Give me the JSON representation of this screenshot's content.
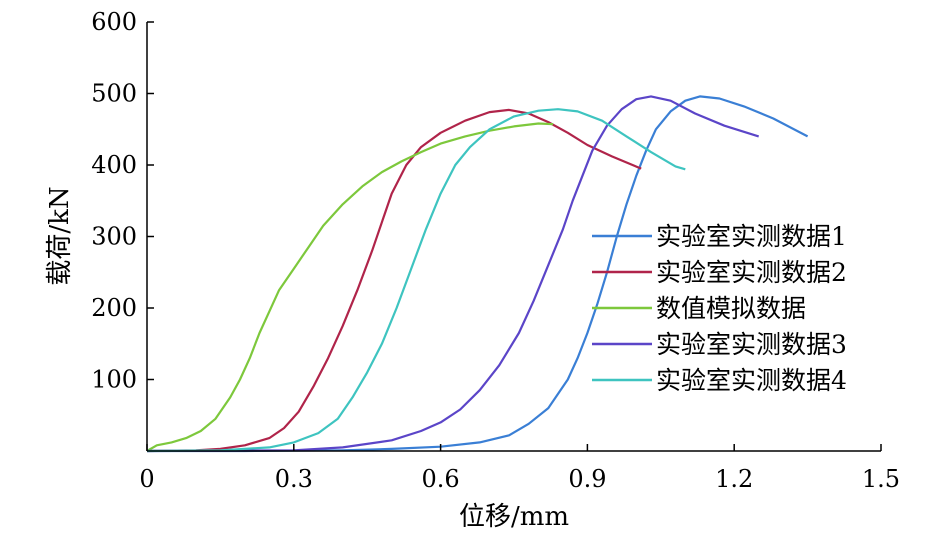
{
  "chart_data": {
    "type": "line",
    "xlabel": "位移/mm",
    "ylabel": "载荷/kN",
    "xlim": [
      0,
      1.5
    ],
    "ylim": [
      0,
      600
    ],
    "x_ticks": [
      0,
      0.3,
      0.6,
      0.9,
      1.2,
      1.5
    ],
    "x_tick_labels": [
      "0",
      "0.3",
      "0.6",
      "0.9",
      "1.2",
      "1.5"
    ],
    "y_ticks": [
      100,
      200,
      300,
      400,
      500,
      600
    ],
    "y_tick_labels": [
      "100",
      "200",
      "300",
      "400",
      "500",
      "600"
    ],
    "grid": false,
    "legend_position": "right",
    "series": [
      {
        "name": "实验室实测数据1",
        "color": "#3a7fd5",
        "points": [
          [
            0,
            0
          ],
          [
            0.2,
            0
          ],
          [
            0.4,
            1
          ],
          [
            0.5,
            3
          ],
          [
            0.6,
            6
          ],
          [
            0.68,
            12
          ],
          [
            0.74,
            22
          ],
          [
            0.78,
            38
          ],
          [
            0.82,
            60
          ],
          [
            0.86,
            100
          ],
          [
            0.88,
            130
          ],
          [
            0.9,
            165
          ],
          [
            0.92,
            205
          ],
          [
            0.94,
            250
          ],
          [
            0.96,
            300
          ],
          [
            0.98,
            345
          ],
          [
            1.0,
            385
          ],
          [
            1.02,
            420
          ],
          [
            1.04,
            450
          ],
          [
            1.07,
            475
          ],
          [
            1.1,
            490
          ],
          [
            1.13,
            496
          ],
          [
            1.17,
            493
          ],
          [
            1.22,
            482
          ],
          [
            1.28,
            465
          ],
          [
            1.35,
            440
          ]
        ]
      },
      {
        "name": "实验室实测数据2",
        "color": "#b0244a",
        "points": [
          [
            0,
            0
          ],
          [
            0.1,
            1
          ],
          [
            0.15,
            3
          ],
          [
            0.2,
            8
          ],
          [
            0.25,
            18
          ],
          [
            0.28,
            32
          ],
          [
            0.31,
            55
          ],
          [
            0.34,
            90
          ],
          [
            0.37,
            130
          ],
          [
            0.4,
            175
          ],
          [
            0.43,
            225
          ],
          [
            0.46,
            280
          ],
          [
            0.48,
            320
          ],
          [
            0.5,
            360
          ],
          [
            0.53,
            400
          ],
          [
            0.56,
            425
          ],
          [
            0.6,
            445
          ],
          [
            0.65,
            462
          ],
          [
            0.7,
            474
          ],
          [
            0.74,
            477
          ],
          [
            0.78,
            472
          ],
          [
            0.82,
            460
          ],
          [
            0.86,
            445
          ],
          [
            0.9,
            428
          ],
          [
            0.95,
            412
          ],
          [
            1.01,
            395
          ]
        ]
      },
      {
        "name": "数值模拟数据",
        "color": "#7dc83c",
        "points": [
          [
            0,
            0
          ],
          [
            0.02,
            8
          ],
          [
            0.05,
            12
          ],
          [
            0.08,
            18
          ],
          [
            0.11,
            28
          ],
          [
            0.14,
            45
          ],
          [
            0.17,
            75
          ],
          [
            0.19,
            100
          ],
          [
            0.21,
            130
          ],
          [
            0.23,
            165
          ],
          [
            0.25,
            195
          ],
          [
            0.27,
            225
          ],
          [
            0.3,
            255
          ],
          [
            0.33,
            285
          ],
          [
            0.36,
            315
          ],
          [
            0.4,
            345
          ],
          [
            0.44,
            370
          ],
          [
            0.48,
            390
          ],
          [
            0.52,
            405
          ],
          [
            0.56,
            418
          ],
          [
            0.6,
            430
          ],
          [
            0.65,
            440
          ],
          [
            0.7,
            448
          ],
          [
            0.75,
            454
          ],
          [
            0.8,
            458
          ],
          [
            0.83,
            457
          ]
        ]
      },
      {
        "name": "实验室实测数据3",
        "color": "#5b45c8",
        "points": [
          [
            0,
            0
          ],
          [
            0.3,
            1
          ],
          [
            0.4,
            5
          ],
          [
            0.5,
            15
          ],
          [
            0.56,
            28
          ],
          [
            0.6,
            40
          ],
          [
            0.64,
            58
          ],
          [
            0.68,
            85
          ],
          [
            0.72,
            120
          ],
          [
            0.76,
            165
          ],
          [
            0.79,
            210
          ],
          [
            0.82,
            260
          ],
          [
            0.85,
            310
          ],
          [
            0.87,
            350
          ],
          [
            0.89,
            385
          ],
          [
            0.91,
            420
          ],
          [
            0.94,
            455
          ],
          [
            0.97,
            478
          ],
          [
            1.0,
            492
          ],
          [
            1.03,
            496
          ],
          [
            1.07,
            490
          ],
          [
            1.12,
            472
          ],
          [
            1.18,
            455
          ],
          [
            1.25,
            440
          ]
        ]
      },
      {
        "name": "实验室实测数据4",
        "color": "#3ec4c0",
        "points": [
          [
            0,
            0
          ],
          [
            0.15,
            1
          ],
          [
            0.25,
            5
          ],
          [
            0.3,
            12
          ],
          [
            0.35,
            25
          ],
          [
            0.39,
            45
          ],
          [
            0.42,
            75
          ],
          [
            0.45,
            110
          ],
          [
            0.48,
            150
          ],
          [
            0.51,
            200
          ],
          [
            0.54,
            255
          ],
          [
            0.57,
            310
          ],
          [
            0.6,
            360
          ],
          [
            0.63,
            400
          ],
          [
            0.66,
            425
          ],
          [
            0.7,
            450
          ],
          [
            0.75,
            468
          ],
          [
            0.8,
            476
          ],
          [
            0.84,
            478
          ],
          [
            0.88,
            475
          ],
          [
            0.93,
            462
          ],
          [
            0.98,
            440
          ],
          [
            1.03,
            418
          ],
          [
            1.08,
            398
          ],
          [
            1.1,
            394
          ]
        ]
      }
    ]
  }
}
